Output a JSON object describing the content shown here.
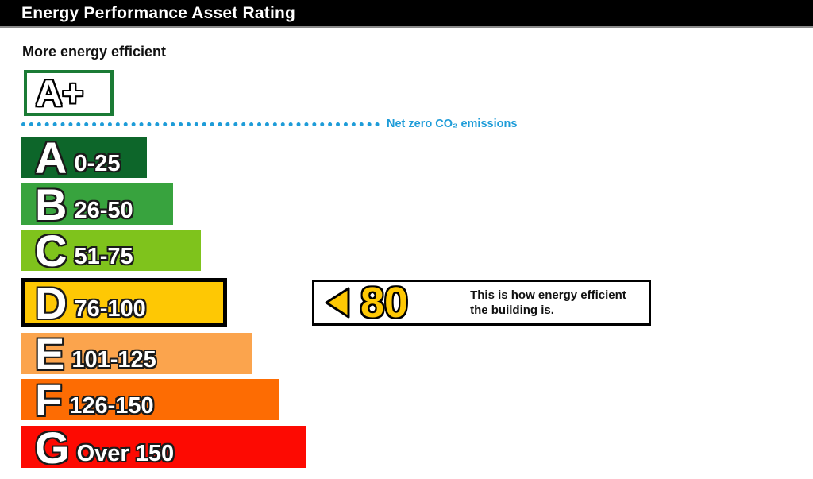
{
  "header": {
    "title": "Energy Performance Asset Rating"
  },
  "labels": {
    "more_efficient": "More energy efficient",
    "aplus": "A+",
    "net_zero": "Net zero CO₂ emissions"
  },
  "colors": {
    "header_bg": "#000000",
    "aplus_border_green": "#1b7b35",
    "net_zero_blue": "#1e9cd8",
    "rating_yellow": "#fec804"
  },
  "indicator": {
    "value": "80",
    "line1": "This is how energy efficient",
    "line2": "the building is."
  },
  "chart_data": {
    "type": "bar",
    "title": "Energy Performance Asset Rating",
    "orientation": "horizontal",
    "bands": [
      {
        "letter": "A",
        "range": "0-25",
        "color": "#0d662a"
      },
      {
        "letter": "B",
        "range": "26-50",
        "color": "#38a33e"
      },
      {
        "letter": "C",
        "range": "51-75",
        "color": "#7fc31c"
      },
      {
        "letter": "D",
        "range": "76-100",
        "color": "#fec804"
      },
      {
        "letter": "E",
        "range": "101-125",
        "color": "#fba44d"
      },
      {
        "letter": "F",
        "range": "126-150",
        "color": "#fd0a02"
      },
      {
        "letter": "G",
        "range": "Over 150",
        "color": "#fd0a02"
      }
    ],
    "band_colors_note": null,
    "current_rating": {
      "value": 80,
      "band": "D"
    },
    "annotations": [
      "More energy efficient",
      "Net zero CO₂ emissions"
    ]
  }
}
